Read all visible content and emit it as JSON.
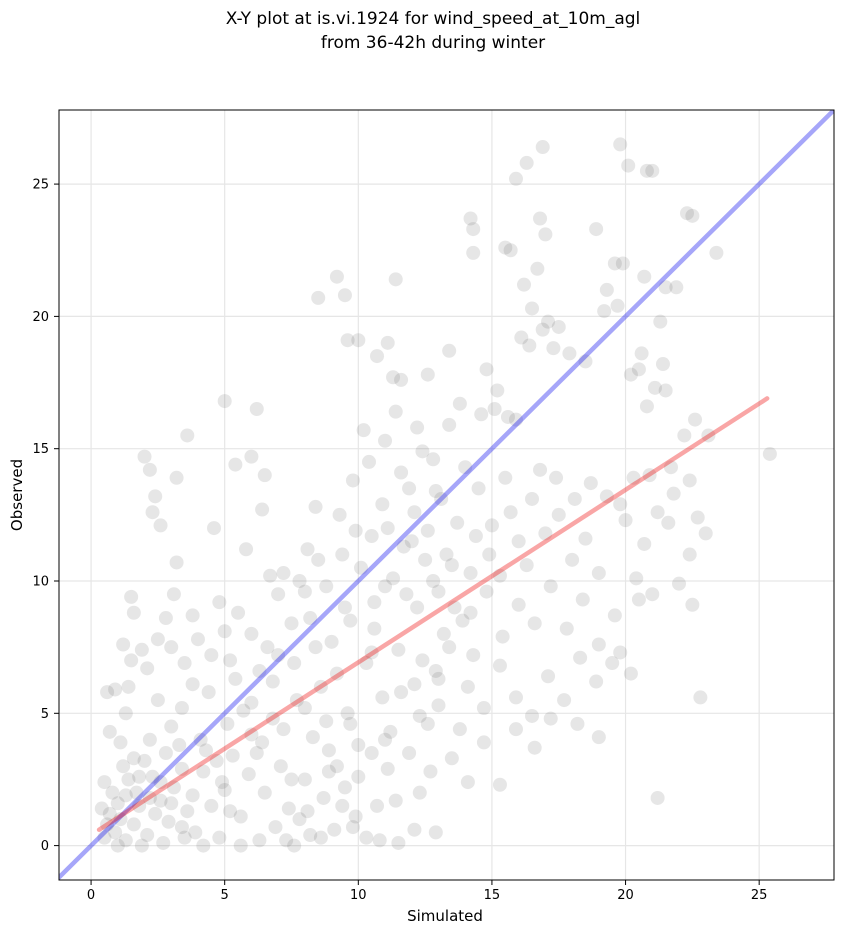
{
  "chart_data": {
    "type": "scatter",
    "title": [
      "X-Y plot at is.vi.1924 for wind_speed_at_10m_agl",
      "from 36-42h during winter"
    ],
    "xlabel": "Simulated",
    "ylabel": "Observed",
    "xlim": [
      -1.2,
      27.8
    ],
    "ylim": [
      -1.3,
      27.8
    ],
    "xticks": [
      0,
      5,
      10,
      15,
      20,
      25
    ],
    "yticks": [
      0,
      5,
      10,
      15,
      20,
      25
    ],
    "grid": true,
    "point_color": "#555555",
    "point_alpha": 0.15,
    "identity_line": {
      "from": [
        -1.2,
        -1.2
      ],
      "to": [
        27.8,
        27.8
      ],
      "color": "#0000ee",
      "alpha": 0.35
    },
    "fit_line": {
      "from": [
        0.3,
        0.6
      ],
      "to": [
        25.3,
        16.9
      ],
      "color": "#ee0000",
      "alpha": 0.35
    },
    "points": [
      [
        2.0,
        14.7
      ],
      [
        2.2,
        14.2
      ],
      [
        2.4,
        13.2
      ],
      [
        2.6,
        12.1
      ],
      [
        2.3,
        12.6
      ],
      [
        3.6,
        15.5
      ],
      [
        3.2,
        13.9
      ],
      [
        5.0,
        16.8
      ],
      [
        6.2,
        16.5
      ],
      [
        4.6,
        12.0
      ],
      [
        5.4,
        14.4
      ],
      [
        6.5,
        14.0
      ],
      [
        6.0,
        14.7
      ],
      [
        5.8,
        11.2
      ],
      [
        6.4,
        12.7
      ],
      [
        3.2,
        10.7
      ],
      [
        1.5,
        9.4
      ],
      [
        1.6,
        8.8
      ],
      [
        2.8,
        8.6
      ],
      [
        3.1,
        9.5
      ],
      [
        0.6,
        5.8
      ],
      [
        0.9,
        5.9
      ],
      [
        1.2,
        7.6
      ],
      [
        0.7,
        4.3
      ],
      [
        1.5,
        7.0
      ],
      [
        1.9,
        7.4
      ],
      [
        2.1,
        6.7
      ],
      [
        1.4,
        6.0
      ],
      [
        2.5,
        5.5
      ],
      [
        1.3,
        5.0
      ],
      [
        0.8,
        2.0
      ],
      [
        1.0,
        1.6
      ],
      [
        0.7,
        1.2
      ],
      [
        1.1,
        1.0
      ],
      [
        0.9,
        0.5
      ],
      [
        1.3,
        0.2
      ],
      [
        1.6,
        0.8
      ],
      [
        1.8,
        1.5
      ],
      [
        2.1,
        0.4
      ],
      [
        2.4,
        1.2
      ],
      [
        0.5,
        2.4
      ],
      [
        0.6,
        0.8
      ],
      [
        1.2,
        3.0
      ],
      [
        1.4,
        2.5
      ],
      [
        1.7,
        2.0
      ],
      [
        2.0,
        3.2
      ],
      [
        2.3,
        2.6
      ],
      [
        2.6,
        1.7
      ],
      [
        2.9,
        0.9
      ],
      [
        3.1,
        2.2
      ],
      [
        3.3,
        3.8
      ],
      [
        3.6,
        1.3
      ],
      [
        3.9,
        0.5
      ],
      [
        4.2,
        2.8
      ],
      [
        4.5,
        1.5
      ],
      [
        4.8,
        0.3
      ],
      [
        5.0,
        2.1
      ],
      [
        5.3,
        3.4
      ],
      [
        5.6,
        1.1
      ],
      [
        5.9,
        2.7
      ],
      [
        3.0,
        4.5
      ],
      [
        3.4,
        5.2
      ],
      [
        3.8,
        6.1
      ],
      [
        4.1,
        4.0
      ],
      [
        4.4,
        5.8
      ],
      [
        4.7,
        3.2
      ],
      [
        5.1,
        4.6
      ],
      [
        5.4,
        6.3
      ],
      [
        5.7,
        5.1
      ],
      [
        6.0,
        4.2
      ],
      [
        4.0,
        7.8
      ],
      [
        4.5,
        7.2
      ],
      [
        5.0,
        8.1
      ],
      [
        5.5,
        8.8
      ],
      [
        3.5,
        6.9
      ],
      [
        4.8,
        9.2
      ],
      [
        5.2,
        7.0
      ],
      [
        6.0,
        8.0
      ],
      [
        6.3,
        6.6
      ],
      [
        6.6,
        7.5
      ],
      [
        6.2,
        3.5
      ],
      [
        6.5,
        2.0
      ],
      [
        6.8,
        4.8
      ],
      [
        7.1,
        3.0
      ],
      [
        7.4,
        1.4
      ],
      [
        7.7,
        5.5
      ],
      [
        8.0,
        2.5
      ],
      [
        8.3,
        4.1
      ],
      [
        8.6,
        6.0
      ],
      [
        8.9,
        3.6
      ],
      [
        6.9,
        0.7
      ],
      [
        7.3,
        0.2
      ],
      [
        7.8,
        1.0
      ],
      [
        8.2,
        0.4
      ],
      [
        8.7,
        1.8
      ],
      [
        9.1,
        0.6
      ],
      [
        9.5,
        2.2
      ],
      [
        9.9,
        1.1
      ],
      [
        10.3,
        0.3
      ],
      [
        10.7,
        1.5
      ],
      [
        7.0,
        7.2
      ],
      [
        7.5,
        8.4
      ],
      [
        8.0,
        9.6
      ],
      [
        8.5,
        10.8
      ],
      [
        9.0,
        7.7
      ],
      [
        9.5,
        9.0
      ],
      [
        7.2,
        10.3
      ],
      [
        8.1,
        11.2
      ],
      [
        9.3,
        12.5
      ],
      [
        8.4,
        12.8
      ],
      [
        9.2,
        6.5
      ],
      [
        9.6,
        5.0
      ],
      [
        10.0,
        3.8
      ],
      [
        10.3,
        6.9
      ],
      [
        10.6,
        8.2
      ],
      [
        10.9,
        5.6
      ],
      [
        11.2,
        4.3
      ],
      [
        11.5,
        7.4
      ],
      [
        11.8,
        9.5
      ],
      [
        12.1,
        6.1
      ],
      [
        10.1,
        10.5
      ],
      [
        10.5,
        11.7
      ],
      [
        10.9,
        12.9
      ],
      [
        11.3,
        10.1
      ],
      [
        11.7,
        11.3
      ],
      [
        12.1,
        12.6
      ],
      [
        12.5,
        10.8
      ],
      [
        12.9,
        13.4
      ],
      [
        13.3,
        11.0
      ],
      [
        13.7,
        12.2
      ],
      [
        9.8,
        13.8
      ],
      [
        10.4,
        14.5
      ],
      [
        11.0,
        15.3
      ],
      [
        11.6,
        14.1
      ],
      [
        12.2,
        15.8
      ],
      [
        12.8,
        14.6
      ],
      [
        13.4,
        15.9
      ],
      [
        14.0,
        14.3
      ],
      [
        10.2,
        15.7
      ],
      [
        11.4,
        16.4
      ],
      [
        8.5,
        20.7
      ],
      [
        9.2,
        21.5
      ],
      [
        9.5,
        20.8
      ],
      [
        9.6,
        19.1
      ],
      [
        10.0,
        19.1
      ],
      [
        10.7,
        18.5
      ],
      [
        11.1,
        19.0
      ],
      [
        11.3,
        17.7
      ],
      [
        11.4,
        21.4
      ],
      [
        11.6,
        17.6
      ],
      [
        12.6,
        17.8
      ],
      [
        13.4,
        18.7
      ],
      [
        14.2,
        23.7
      ],
      [
        14.3,
        23.3
      ],
      [
        14.3,
        22.4
      ],
      [
        15.5,
        22.6
      ],
      [
        15.7,
        22.5
      ],
      [
        15.9,
        25.2
      ],
      [
        16.3,
        25.8
      ],
      [
        16.9,
        26.4
      ],
      [
        16.8,
        23.7
      ],
      [
        17.0,
        23.1
      ],
      [
        16.7,
        21.8
      ],
      [
        16.2,
        21.2
      ],
      [
        16.5,
        20.3
      ],
      [
        16.9,
        19.5
      ],
      [
        17.1,
        19.8
      ],
      [
        17.5,
        19.6
      ],
      [
        17.9,
        18.6
      ],
      [
        18.5,
        18.3
      ],
      [
        14.8,
        18.0
      ],
      [
        15.2,
        17.2
      ],
      [
        15.6,
        16.2
      ],
      [
        16.1,
        19.2
      ],
      [
        16.4,
        18.9
      ],
      [
        17.3,
        18.8
      ],
      [
        13.8,
        16.7
      ],
      [
        14.6,
        16.3
      ],
      [
        15.1,
        16.5
      ],
      [
        15.9,
        16.1
      ],
      [
        18.9,
        23.3
      ],
      [
        19.3,
        21.0
      ],
      [
        19.6,
        22.0
      ],
      [
        19.9,
        22.0
      ],
      [
        19.8,
        26.5
      ],
      [
        20.1,
        25.7
      ],
      [
        20.8,
        25.5
      ],
      [
        21.0,
        25.5
      ],
      [
        20.7,
        21.5
      ],
      [
        21.5,
        21.1
      ],
      [
        19.2,
        20.2
      ],
      [
        19.7,
        20.4
      ],
      [
        20.2,
        17.8
      ],
      [
        20.5,
        18.0
      ],
      [
        20.8,
        16.6
      ],
      [
        21.3,
        19.8
      ],
      [
        20.6,
        18.6
      ],
      [
        21.1,
        17.3
      ],
      [
        21.5,
        17.2
      ],
      [
        22.3,
        23.9
      ],
      [
        22.5,
        23.8
      ],
      [
        23.4,
        22.4
      ],
      [
        21.9,
        21.1
      ],
      [
        21.4,
        18.2
      ],
      [
        22.2,
        15.5
      ],
      [
        22.6,
        16.1
      ],
      [
        23.1,
        15.5
      ],
      [
        25.4,
        14.8
      ],
      [
        22.4,
        13.8
      ],
      [
        21.8,
        13.3
      ],
      [
        14.5,
        13.5
      ],
      [
        15.0,
        12.1
      ],
      [
        15.5,
        13.9
      ],
      [
        16.0,
        11.5
      ],
      [
        16.5,
        13.1
      ],
      [
        17.0,
        11.8
      ],
      [
        17.5,
        12.5
      ],
      [
        18.0,
        10.8
      ],
      [
        18.5,
        11.6
      ],
      [
        19.0,
        10.3
      ],
      [
        14.2,
        8.8
      ],
      [
        14.8,
        9.6
      ],
      [
        15.4,
        7.9
      ],
      [
        16.0,
        9.1
      ],
      [
        16.6,
        8.4
      ],
      [
        17.2,
        9.8
      ],
      [
        17.8,
        8.2
      ],
      [
        18.4,
        9.3
      ],
      [
        19.0,
        7.6
      ],
      [
        19.6,
        8.7
      ],
      [
        14.1,
        6.0
      ],
      [
        14.7,
        5.2
      ],
      [
        15.3,
        6.8
      ],
      [
        15.9,
        5.6
      ],
      [
        16.5,
        4.9
      ],
      [
        17.1,
        6.4
      ],
      [
        17.7,
        5.5
      ],
      [
        18.3,
        7.1
      ],
      [
        18.9,
        6.2
      ],
      [
        19.5,
        6.9
      ],
      [
        13.5,
        3.3
      ],
      [
        14.1,
        2.4
      ],
      [
        14.7,
        3.9
      ],
      [
        15.3,
        2.3
      ],
      [
        15.9,
        4.4
      ],
      [
        16.6,
        3.7
      ],
      [
        17.2,
        4.8
      ],
      [
        18.2,
        4.6
      ],
      [
        19.0,
        4.1
      ],
      [
        20.2,
        6.5
      ],
      [
        20.0,
        12.3
      ],
      [
        20.4,
        10.1
      ],
      [
        20.7,
        11.4
      ],
      [
        21.0,
        9.5
      ],
      [
        21.6,
        12.2
      ],
      [
        22.0,
        9.9
      ],
      [
        22.4,
        11.0
      ],
      [
        22.5,
        9.1
      ],
      [
        22.7,
        12.4
      ],
      [
        23.0,
        11.8
      ],
      [
        19.8,
        7.3
      ],
      [
        20.5,
        9.3
      ],
      [
        21.2,
        1.8
      ],
      [
        22.8,
        5.6
      ],
      [
        12.4,
        14.9
      ],
      [
        13.1,
        13.1
      ],
      [
        12.0,
        11.5
      ],
      [
        11.0,
        9.8
      ],
      [
        10.5,
        7.3
      ],
      [
        9.7,
        8.5
      ],
      [
        11.9,
        3.5
      ],
      [
        12.3,
        2.0
      ],
      [
        12.6,
        4.6
      ],
      [
        12.9,
        0.5
      ],
      [
        12.1,
        0.6
      ],
      [
        11.5,
        0.1
      ],
      [
        10.8,
        0.2
      ],
      [
        11.1,
        2.9
      ],
      [
        11.4,
        1.7
      ],
      [
        12.7,
        2.8
      ],
      [
        13.0,
        5.3
      ],
      [
        13.4,
        7.5
      ],
      [
        13.8,
        4.4
      ],
      [
        14.2,
        10.3
      ],
      [
        13.6,
        9.0
      ],
      [
        13.2,
        8.0
      ],
      [
        12.8,
        10.0
      ],
      [
        12.4,
        7.0
      ],
      [
        13.0,
        6.3
      ],
      [
        14.4,
        11.7
      ],
      [
        4.2,
        0.0
      ],
      [
        3.5,
        0.3
      ],
      [
        2.7,
        0.1
      ],
      [
        1.9,
        0.0
      ],
      [
        1.0,
        0.0
      ],
      [
        5.6,
        0.0
      ],
      [
        6.3,
        0.2
      ],
      [
        7.6,
        0.0
      ],
      [
        8.6,
        0.3
      ],
      [
        9.8,
        0.7
      ],
      [
        2.2,
        4.0
      ],
      [
        2.8,
        3.5
      ],
      [
        3.4,
        2.9
      ],
      [
        1.6,
        3.3
      ],
      [
        0.4,
        1.4
      ],
      [
        0.5,
        0.3
      ],
      [
        1.1,
        3.9
      ],
      [
        2.5,
        7.8
      ],
      [
        3.0,
        7.5
      ],
      [
        3.8,
        8.7
      ],
      [
        6.7,
        10.2
      ],
      [
        7.0,
        9.5
      ],
      [
        7.8,
        10.0
      ],
      [
        8.2,
        8.6
      ],
      [
        8.8,
        9.8
      ],
      [
        9.4,
        11.0
      ],
      [
        9.9,
        11.9
      ],
      [
        10.6,
        9.2
      ],
      [
        11.1,
        12.0
      ],
      [
        11.9,
        13.5
      ],
      [
        12.2,
        9.0
      ],
      [
        12.6,
        11.9
      ],
      [
        13.0,
        9.6
      ],
      [
        13.5,
        10.6
      ],
      [
        13.9,
        8.5
      ],
      [
        14.3,
        7.2
      ],
      [
        14.9,
        11.0
      ],
      [
        15.3,
        10.2
      ],
      [
        15.7,
        12.6
      ],
      [
        16.3,
        10.6
      ],
      [
        16.8,
        14.2
      ],
      [
        17.4,
        13.9
      ],
      [
        18.1,
        13.1
      ],
      [
        18.7,
        13.7
      ],
      [
        19.3,
        13.2
      ],
      [
        19.8,
        12.9
      ],
      [
        20.3,
        13.9
      ],
      [
        20.9,
        14.0
      ],
      [
        21.2,
        12.6
      ],
      [
        21.7,
        14.3
      ],
      [
        6.0,
        5.4
      ],
      [
        6.4,
        3.9
      ],
      [
        6.8,
        6.2
      ],
      [
        7.2,
        4.4
      ],
      [
        7.6,
        6.9
      ],
      [
        8.0,
        5.2
      ],
      [
        8.4,
        7.5
      ],
      [
        8.8,
        4.7
      ],
      [
        9.2,
        3.0
      ],
      [
        9.7,
        4.6
      ],
      [
        7.5,
        2.5
      ],
      [
        8.1,
        1.3
      ],
      [
        8.9,
        2.8
      ],
      [
        9.4,
        1.5
      ],
      [
        10.0,
        2.6
      ],
      [
        10.5,
        3.5
      ],
      [
        11.0,
        4.0
      ],
      [
        11.6,
        5.8
      ],
      [
        12.3,
        4.9
      ],
      [
        12.9,
        6.6
      ],
      [
        1.3,
        1.9
      ],
      [
        1.8,
        2.6
      ],
      [
        2.2,
        1.8
      ],
      [
        2.6,
        2.4
      ],
      [
        3.0,
        1.6
      ],
      [
        3.4,
        0.7
      ],
      [
        3.8,
        1.9
      ],
      [
        4.3,
        3.6
      ],
      [
        4.9,
        2.4
      ],
      [
        5.2,
        1.3
      ]
    ]
  }
}
